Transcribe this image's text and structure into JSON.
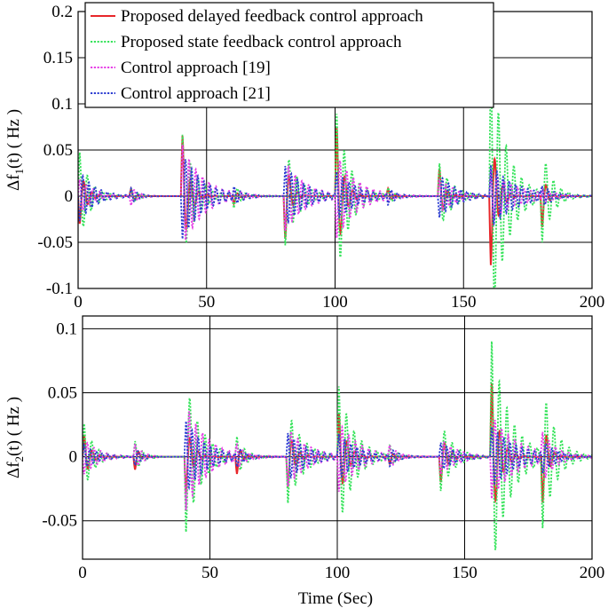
{
  "figure": {
    "xlabel": "Time (Sec)"
  },
  "chart_data": [
    {
      "type": "line",
      "ylabel_main": "Δf",
      "ylabel_sub": "1",
      "ylabel_rest": "(t) ( Hz )",
      "xlim": [
        0,
        200
      ],
      "ylim": [
        -0.1,
        0.2
      ],
      "xticks": [
        0,
        50,
        100,
        150,
        200
      ],
      "xtick_labels": [
        "0",
        "50",
        "100",
        "150",
        "200"
      ],
      "yticks": [
        -0.1,
        -0.05,
        0,
        0.05,
        0.1,
        0.15,
        0.2
      ],
      "ytick_labels": [
        "-0.1",
        "-0.05",
        "0",
        "0.05",
        "0.1",
        "0.15",
        "0.2"
      ],
      "grid": true,
      "legend_position": "top-left",
      "events": [
        0,
        20,
        40,
        60,
        80,
        100,
        120,
        140,
        160,
        180
      ],
      "series": [
        {
          "name": "Proposed delayed feedback control approach",
          "color": "#e8262a",
          "dash": "solid",
          "amplitudes": [
            -0.038,
            0.012,
            0.083,
            -0.012,
            -0.062,
            0.095,
            0.012,
            0.04,
            -0.095,
            -0.05
          ],
          "periods": [
            3.2,
            3.0,
            3.2,
            3.0,
            3.2,
            3.2,
            3.0,
            3.2,
            3.2,
            3.2
          ],
          "decays": [
            2.5,
            1.5,
            2.5,
            1.5,
            2.0,
            2.5,
            1.5,
            2.0,
            2.5,
            1.5
          ]
        },
        {
          "name": "Proposed state feedback control approach",
          "color": "#35e35a",
          "dash": "dot",
          "amplitudes": [
            0.055,
            0.01,
            0.075,
            -0.015,
            -0.06,
            0.1,
            0.012,
            0.04,
            0.165,
            -0.055
          ],
          "periods": [
            3.0,
            3.0,
            3.0,
            3.0,
            3.0,
            3.0,
            3.0,
            3.0,
            3.0,
            3.0
          ],
          "decays": [
            4.0,
            3.0,
            5.0,
            3.0,
            5.0,
            5.0,
            3.0,
            5.0,
            6.0,
            4.0
          ]
        },
        {
          "name": "Control approach [19]",
          "color": "#e63ee6",
          "dash": "dot",
          "amplitudes": [
            0.02,
            -0.012,
            0.06,
            0.012,
            -0.04,
            -0.05,
            -0.01,
            0.02,
            0.03,
            0.01
          ],
          "periods": [
            2.6,
            2.6,
            2.6,
            2.6,
            2.6,
            2.6,
            2.6,
            2.6,
            2.6,
            2.6
          ],
          "decays": [
            6.0,
            3.0,
            8.0,
            3.0,
            8.0,
            8.0,
            3.0,
            7.0,
            10.0,
            5.0
          ]
        },
        {
          "name": "Control approach [21]",
          "color": "#2d3ed1",
          "dash": "dot",
          "amplitudes": [
            -0.03,
            0.01,
            -0.05,
            0.01,
            0.035,
            0.03,
            -0.01,
            -0.025,
            0.035,
            0.015
          ],
          "periods": [
            2.4,
            2.4,
            2.4,
            2.4,
            2.4,
            2.4,
            2.4,
            2.4,
            2.4,
            2.4
          ],
          "decays": [
            6.0,
            3.0,
            8.0,
            3.0,
            8.0,
            8.0,
            3.0,
            7.0,
            10.0,
            5.0
          ]
        }
      ]
    },
    {
      "type": "line",
      "ylabel_main": "Δf",
      "ylabel_sub": "2",
      "ylabel_rest": "(t) ( Hz )",
      "xlim": [
        0,
        200
      ],
      "ylim": [
        -0.08,
        0.11
      ],
      "xticks": [
        0,
        50,
        100,
        150,
        200
      ],
      "xtick_labels": [
        "0",
        "50",
        "100",
        "150",
        "200"
      ],
      "yticks": [
        -0.05,
        0,
        0.05,
        0.1
      ],
      "ytick_labels": [
        "-0.05",
        "0",
        "0.05",
        "0.1"
      ],
      "grid": true,
      "events": [
        0,
        20,
        40,
        60,
        80,
        100,
        120,
        140,
        160,
        180
      ],
      "series": [
        {
          "name": "Proposed delayed feedback control approach",
          "color": "#e8262a",
          "dash": "solid",
          "amplitudes": [
            0.022,
            -0.015,
            -0.035,
            -0.02,
            -0.03,
            0.042,
            -0.008,
            -0.025,
            0.07,
            -0.048
          ],
          "periods": [
            3.2,
            3.0,
            3.2,
            3.0,
            3.2,
            3.2,
            3.0,
            3.2,
            3.2,
            3.2
          ],
          "decays": [
            2.5,
            1.5,
            2.5,
            1.5,
            2.5,
            3.0,
            1.5,
            2.5,
            3.0,
            2.0
          ]
        },
        {
          "name": "Proposed state feedback control approach",
          "color": "#35e35a",
          "dash": "dot",
          "amplitudes": [
            0.03,
            0.015,
            -0.065,
            0.018,
            -0.04,
            0.06,
            0.012,
            -0.03,
            0.098,
            -0.06
          ],
          "periods": [
            3.0,
            3.0,
            3.0,
            3.0,
            3.0,
            3.0,
            3.0,
            3.0,
            3.0,
            3.0
          ],
          "decays": [
            4.0,
            3.0,
            6.0,
            3.0,
            6.0,
            6.0,
            3.0,
            5.0,
            7.0,
            5.0
          ]
        },
        {
          "name": "Control approach [19]",
          "color": "#e63ee6",
          "dash": "dot",
          "amplitudes": [
            -0.015,
            0.012,
            -0.045,
            0.01,
            -0.025,
            -0.03,
            0.01,
            -0.015,
            -0.035,
            0.02
          ],
          "periods": [
            2.6,
            2.6,
            2.6,
            2.6,
            2.6,
            2.6,
            2.6,
            2.6,
            2.6,
            2.6
          ],
          "decays": [
            6.0,
            3.0,
            8.0,
            3.0,
            8.0,
            8.0,
            3.0,
            7.0,
            10.0,
            5.0
          ]
        },
        {
          "name": "Control approach [21]",
          "color": "#2d3ed1",
          "dash": "dot",
          "amplitudes": [
            0.01,
            -0.008,
            0.03,
            -0.008,
            0.02,
            0.02,
            -0.008,
            0.012,
            0.025,
            -0.012
          ],
          "periods": [
            2.4,
            2.4,
            2.4,
            2.4,
            2.4,
            2.4,
            2.4,
            2.4,
            2.4,
            2.4
          ],
          "decays": [
            6.0,
            3.0,
            8.0,
            3.0,
            8.0,
            8.0,
            3.0,
            7.0,
            10.0,
            5.0
          ]
        }
      ]
    }
  ]
}
